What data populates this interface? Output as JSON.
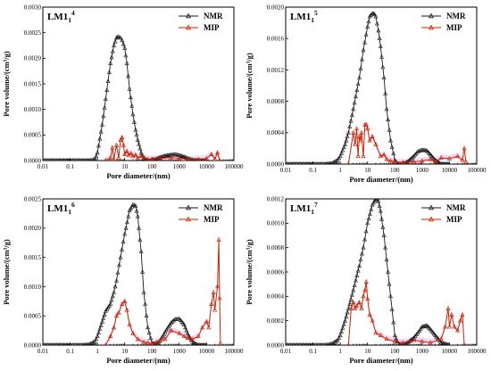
{
  "figure": {
    "colors": {
      "nmr": "#1a1a1a",
      "mip": "#cc2200",
      "mip_band": "#f7b6ee"
    },
    "icons": {
      "nmr_marker": "open-triangle-up",
      "mip_marker": "open-triangle-up"
    }
  },
  "chart_data": [
    {
      "type": "line",
      "title": "LM1",
      "title_sub": "1",
      "title_sup": "4",
      "xlabel": "Pore diameter/(nm)",
      "ylabel": "Pore volume/(cm³/g)",
      "x_scale": "log",
      "xlim": [
        0.01,
        100000
      ],
      "x_ticks": [
        "0.01",
        "0.1",
        "1",
        "10",
        "100",
        "1000",
        "10000",
        "100000"
      ],
      "ylim": [
        0,
        0.003
      ],
      "y_ticks": [
        "0.0000",
        "0.0005",
        "0.0010",
        "0.0015",
        "0.0020",
        "0.0025",
        "0.0030"
      ],
      "legend_position": "top-right",
      "grid": false,
      "series": [
        {
          "name": "NMR",
          "x": [
            0.01,
            0.1,
            0.5,
            0.8,
            1,
            1.5,
            2,
            3,
            4,
            5,
            6,
            7,
            8,
            10,
            12,
            15,
            20,
            25,
            30,
            40,
            50,
            70,
            90,
            100,
            150,
            200,
            300,
            500,
            700,
            1000,
            1500,
            2000,
            3000,
            5000,
            10000
          ],
          "y": [
            0,
            0,
            0,
            2e-05,
            0.00015,
            0.0007,
            0.0012,
            0.0019,
            0.00225,
            0.0024,
            0.00242,
            0.0024,
            0.00235,
            0.0022,
            0.0019,
            0.0014,
            0.0009,
            0.0006,
            0.0004,
            0.00015,
            4e-05,
            0,
            0,
            1e-05,
            3e-05,
            6e-05,
            9e-05,
            0.00011,
            0.00012,
            0.0001,
            7e-05,
            4e-05,
            1e-05,
            0,
            0
          ]
        },
        {
          "name": "MIP",
          "x": [
            2,
            3,
            3.5,
            4,
            5,
            6,
            7,
            8,
            9,
            10,
            12,
            14,
            17,
            20,
            25,
            30,
            40,
            50,
            70,
            100,
            200,
            500,
            1000,
            2000,
            5000,
            10000,
            15000,
            20000,
            25000,
            30000
          ],
          "y": [
            0,
            5e-05,
            0.00025,
            3e-05,
            0.0003,
            5e-05,
            0.0004,
            0.00045,
            0.0003,
            0.00012,
            0.00018,
            0.0001,
            0.00014,
            8e-05,
            0.00011,
            4e-05,
            9e-05,
            6e-05,
            2e-05,
            3e-05,
            4e-05,
            6e-05,
            4e-05,
            3e-05,
            2e-05,
            4e-05,
            0.00012,
            3e-05,
            0.00015,
            0
          ]
        }
      ]
    },
    {
      "type": "line",
      "title": "LM1",
      "title_sub": "1",
      "title_sup": "5",
      "xlabel": "Pore diameter/(nm)",
      "ylabel": "Pore volume/(cm³/g)",
      "x_scale": "log",
      "xlim": [
        0.01,
        100000
      ],
      "x_ticks": [
        "0.01",
        "0.1",
        "1",
        "10",
        "100",
        "1000",
        "10000",
        "100000"
      ],
      "ylim": [
        0,
        0.002
      ],
      "y_ticks": [
        "0.0000",
        "0.0004",
        "0.0008",
        "0.0012",
        "0.0016",
        "0.0020"
      ],
      "legend_position": "top-right",
      "grid": false,
      "series": [
        {
          "name": "NMR",
          "x": [
            0.01,
            0.1,
            0.3,
            0.5,
            0.8,
            1,
            1.5,
            2,
            3,
            5,
            7,
            10,
            12,
            15,
            18,
            20,
            25,
            30,
            40,
            50,
            70,
            100,
            120,
            150,
            200,
            300,
            500,
            700,
            1000,
            1500,
            2000,
            3000,
            5000,
            10000
          ],
          "y": [
            0,
            0,
            0,
            1e-05,
            5e-05,
            0.0001,
            0.00025,
            0.0004,
            0.0007,
            0.0011,
            0.00145,
            0.00175,
            0.00188,
            0.00192,
            0.00191,
            0.00188,
            0.0017,
            0.0015,
            0.0011,
            0.0007,
            0.0003,
            5e-05,
            1e-05,
            0,
            0,
            3e-05,
            0.0001,
            0.00016,
            0.00018,
            0.00017,
            0.00012,
            5e-05,
            0,
            0
          ]
        },
        {
          "name": "MIP",
          "x": [
            2,
            3,
            3.5,
            4,
            4.5,
            5,
            5.5,
            6,
            7,
            8,
            9,
            10,
            12,
            15,
            20,
            30,
            40,
            50,
            70,
            100,
            200,
            500,
            1000,
            2000,
            3000,
            5000,
            10000,
            20000,
            30000,
            35000,
            40000
          ],
          "y": [
            0,
            0.0004,
            0.00025,
            0.00045,
            0.0001,
            0.00035,
            0.0003,
            0.0004,
            0.0001,
            0.0005,
            0.0005,
            0.00045,
            0.0003,
            0.00035,
            0.00025,
            0.0001,
            0.00012,
            6e-05,
            4e-05,
            3e-05,
            2e-05,
            3e-05,
            4e-05,
            6e-05,
            3e-05,
            8e-05,
            7e-05,
            0.0001,
            5e-05,
            0.0002,
            3e-05
          ]
        }
      ]
    },
    {
      "type": "line",
      "title": "LM1",
      "title_sub": "1",
      "title_sup": "6",
      "xlabel": "Pore diameter/(nm)",
      "ylabel": "Pore volume/(cm³/g)",
      "x_scale": "log",
      "xlim": [
        0.01,
        100000
      ],
      "x_ticks": [
        "0.01",
        "0.1",
        "1",
        "10",
        "100",
        "1000",
        "10000",
        "100000"
      ],
      "ylim": [
        0,
        0.0025
      ],
      "y_ticks": [
        "0.0000",
        "0.0005",
        "0.0010",
        "0.0015",
        "0.0020",
        "0.0025"
      ],
      "legend_position": "top-right",
      "grid": false,
      "series": [
        {
          "name": "NMR",
          "x": [
            0.01,
            0.1,
            0.3,
            0.5,
            0.8,
            1,
            1.5,
            2,
            3,
            4,
            5,
            7,
            10,
            15,
            20,
            25,
            30,
            40,
            50,
            70,
            100,
            150,
            200,
            300,
            500,
            700,
            1000,
            1500,
            2000,
            3000,
            5000,
            10000
          ],
          "y": [
            0,
            0,
            0,
            1e-05,
            6e-05,
            0.00015,
            0.0004,
            0.00058,
            0.0007,
            0.0009,
            0.0011,
            0.0015,
            0.0019,
            0.0023,
            0.0024,
            0.00238,
            0.0022,
            0.0016,
            0.0009,
            0.0003,
            3e-05,
            2e-05,
            8e-05,
            0.00022,
            0.00038,
            0.00044,
            0.00045,
            0.00035,
            0.0002,
            5e-05,
            0,
            0
          ]
        },
        {
          "name": "MIP",
          "x": [
            2,
            3,
            4,
            5,
            6,
            8,
            10,
            12,
            15,
            20,
            30,
            50,
            70,
            100,
            150,
            200,
            300,
            500,
            1000,
            1500,
            2000,
            3000,
            5000,
            7000,
            10000,
            12000,
            15000,
            18000,
            20000,
            25000,
            28000,
            30000,
            32000
          ],
          "y": [
            0,
            0.00015,
            0.0003,
            0.0005,
            0.00055,
            0.0007,
            0.00075,
            0.0006,
            0.00035,
            0.0002,
            0.0001,
            5e-05,
            4e-05,
            3e-05,
            5e-05,
            8e-05,
            0.0001,
            0.00025,
            0.0002,
            0.00015,
            0.00012,
            0.0001,
            0.00015,
            0.0003,
            0.0004,
            0.0003,
            0.0007,
            0.0009,
            0.0006,
            0.001,
            0.0018,
            0.0008,
            3e-05
          ]
        }
      ]
    },
    {
      "type": "line",
      "title": "LM1",
      "title_sub": "1",
      "title_sup": "7",
      "xlabel": "Pore diameter/(nm)",
      "ylabel": "Pore volume/(cm³/g)",
      "x_scale": "log",
      "xlim": [
        0.01,
        100000
      ],
      "x_ticks": [
        "0.01",
        "0.1",
        "1",
        "10",
        "100",
        "1000",
        "10000",
        "100000"
      ],
      "ylim": [
        0,
        0.0012
      ],
      "y_ticks": [
        "0.0000",
        "0.0002",
        "0.0004",
        "0.0006",
        "0.0008",
        "0.0010",
        "0.0012"
      ],
      "legend_position": "top-right",
      "grid": false,
      "series": [
        {
          "name": "NMR",
          "x": [
            0.01,
            0.1,
            0.3,
            0.5,
            0.8,
            1,
            1.5,
            2,
            3,
            5,
            7,
            10,
            15,
            20,
            25,
            30,
            40,
            50,
            70,
            100,
            120,
            150,
            200,
            300,
            500,
            700,
            1000,
            1500,
            2000,
            3000,
            5000,
            10000
          ],
          "y": [
            0,
            0,
            0,
            1e-05,
            4e-05,
            8e-05,
            0.0002,
            0.0003,
            0.00045,
            0.00065,
            0.0008,
            0.001,
            0.00115,
            0.0012,
            0.00118,
            0.0011,
            0.0009,
            0.0007,
            0.0004,
            8e-05,
            3e-05,
            0,
            0,
            2e-05,
            6e-05,
            0.0001,
            0.00015,
            0.00016,
            0.00013,
            8e-05,
            2e-05,
            0
          ]
        },
        {
          "name": "MIP",
          "x": [
            2,
            2.5,
            3,
            3.5,
            4,
            5,
            6,
            7,
            8,
            9,
            10,
            12,
            15,
            20,
            30,
            50,
            100,
            200,
            500,
            1000,
            2000,
            5000,
            7000,
            9000,
            10000,
            12000,
            15000,
            20000,
            25000,
            30000,
            35000
          ],
          "y": [
            0,
            0.0003,
            0.00035,
            0.0003,
            0.00032,
            0.00035,
            0.0003,
            0.0004,
            0.00045,
            0.00052,
            0.00038,
            0.00025,
            0.0002,
            0.0001,
            8e-05,
            5e-05,
            3e-05,
            2e-05,
            4e-05,
            3e-05,
            2e-05,
            5e-05,
            0.00015,
            0.0003,
            0.00015,
            0.00025,
            0.00015,
            0.00012,
            0.0002,
            0.00025,
            0
          ]
        }
      ]
    }
  ]
}
